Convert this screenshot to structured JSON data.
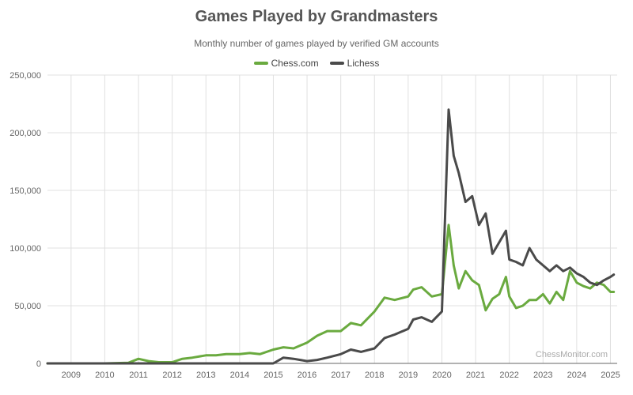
{
  "header": {
    "title": "Games Played by Grandmasters",
    "subtitle": "Monthly number of games played by verified GM accounts"
  },
  "legend": [
    {
      "label": "Chess.com",
      "color": "#6aaa3f"
    },
    {
      "label": "Lichess",
      "color": "#4a4a4a"
    }
  ],
  "watermark": "ChessMonitor.com",
  "chart_data": {
    "type": "line",
    "title": "Games Played by Grandmasters",
    "subtitle": "Monthly number of games played by verified GM accounts",
    "xlabel": "",
    "ylabel": "",
    "ylim": [
      0,
      250000
    ],
    "yticks": [
      "0",
      "50,000",
      "100,000",
      "150,000",
      "200,000",
      "250,000"
    ],
    "xticks": [
      "2009",
      "2010",
      "2011",
      "2012",
      "2013",
      "2014",
      "2015",
      "2016",
      "2017",
      "2018",
      "2019",
      "2020",
      "2021",
      "2022",
      "2023",
      "2024",
      "2025"
    ],
    "grid": true,
    "legend_position": "top",
    "x": [
      2008.3,
      2009,
      2010,
      2010.7,
      2011,
      2011.3,
      2011.6,
      2012,
      2012.3,
      2012.6,
      2013,
      2013.3,
      2013.6,
      2014,
      2014.3,
      2014.6,
      2015,
      2015.3,
      2015.6,
      2016,
      2016.3,
      2016.6,
      2017,
      2017.3,
      2017.6,
      2018,
      2018.3,
      2018.6,
      2019,
      2019.15,
      2019.4,
      2019.7,
      2020,
      2020.2,
      2020.35,
      2020.5,
      2020.7,
      2020.9,
      2021.1,
      2021.3,
      2021.5,
      2021.7,
      2021.9,
      2022,
      2022.2,
      2022.4,
      2022.6,
      2022.8,
      2023,
      2023.2,
      2023.4,
      2023.6,
      2023.8,
      2024,
      2024.2,
      2024.4,
      2024.6,
      2024.8,
      2025,
      2025.1
    ],
    "series": [
      {
        "name": "Chess.com",
        "color": "#6aaa3f",
        "values": [
          0,
          0,
          0,
          500,
          4000,
          2000,
          1000,
          1000,
          4000,
          5000,
          7000,
          7000,
          8000,
          8000,
          9000,
          8000,
          12000,
          14000,
          13000,
          18000,
          24000,
          28000,
          28000,
          35000,
          33000,
          45000,
          57000,
          55000,
          58000,
          64000,
          66000,
          58000,
          60000,
          120000,
          85000,
          65000,
          80000,
          72000,
          68000,
          46000,
          56000,
          60000,
          75000,
          58000,
          48000,
          50000,
          55000,
          55000,
          60000,
          52000,
          62000,
          55000,
          80000,
          70000,
          67000,
          65000,
          70000,
          68000,
          62000,
          62000
        ]
      },
      {
        "name": "Lichess",
        "color": "#4a4a4a",
        "values": [
          0,
          0,
          0,
          0,
          0,
          0,
          0,
          0,
          0,
          0,
          0,
          0,
          0,
          0,
          0,
          0,
          0,
          5000,
          4000,
          2000,
          3000,
          5000,
          8000,
          12000,
          10000,
          13000,
          22000,
          25000,
          30000,
          38000,
          40000,
          36000,
          45000,
          220000,
          180000,
          165000,
          140000,
          145000,
          120000,
          130000,
          95000,
          105000,
          115000,
          90000,
          88000,
          85000,
          100000,
          90000,
          85000,
          80000,
          85000,
          80000,
          83000,
          78000,
          75000,
          70000,
          68000,
          72000,
          75000,
          77000
        ]
      }
    ]
  }
}
